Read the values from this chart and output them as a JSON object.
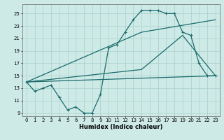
{
  "xlabel": "Humidex (Indice chaleur)",
  "background_color": "#ceeae7",
  "grid_color": "#aed4d0",
  "line_color": "#1a6b6b",
  "xlim": [
    -0.5,
    23.5
  ],
  "ylim": [
    8.5,
    26.5
  ],
  "xticks": [
    0,
    1,
    2,
    3,
    4,
    5,
    6,
    7,
    8,
    9,
    10,
    11,
    12,
    13,
    14,
    15,
    16,
    17,
    18,
    19,
    20,
    21,
    22,
    23
  ],
  "yticks": [
    9,
    11,
    13,
    15,
    17,
    19,
    21,
    23,
    25
  ],
  "series": [
    {
      "x": [
        0,
        1,
        2,
        3,
        4,
        5,
        6,
        7,
        8,
        9,
        10,
        11,
        12,
        13,
        14,
        15,
        16,
        17,
        18,
        19,
        20,
        21,
        22,
        23
      ],
      "y": [
        14,
        12.5,
        13,
        13.5,
        11.5,
        9.5,
        10,
        9,
        9,
        12,
        19.5,
        20,
        22,
        24,
        25.5,
        25.5,
        25.5,
        25,
        25,
        22,
        21.5,
        17,
        15,
        15
      ],
      "marker": true
    },
    {
      "x": [
        0,
        23
      ],
      "y": [
        14,
        15
      ],
      "marker": false
    },
    {
      "x": [
        0,
        14,
        23
      ],
      "y": [
        14,
        22,
        24
      ],
      "marker": false
    },
    {
      "x": [
        0,
        14,
        19,
        23
      ],
      "y": [
        14,
        16,
        21.5,
        15
      ],
      "marker": false
    }
  ]
}
